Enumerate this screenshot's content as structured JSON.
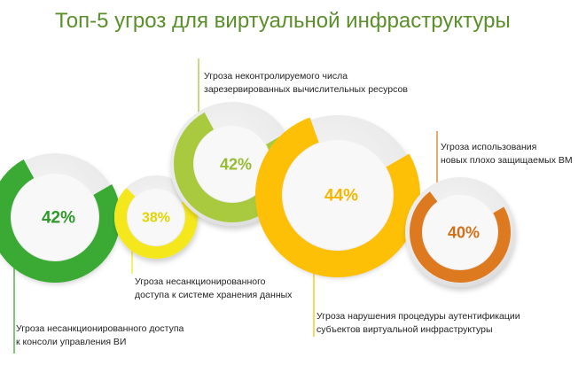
{
  "chart_data": {
    "type": "donut",
    "title": "Топ-5 угроз для виртуальной инфраструктуры",
    "items": [
      {
        "label": "Угроза несанкционированного доступа к консоли управления ВИ",
        "line1": "Угроза несанкционированного доступа",
        "line2": "к консоли управления ВИ",
        "value": 42,
        "value_text": "42%",
        "color": "#3aaa35",
        "text_color": "#2f9a2c"
      },
      {
        "label": "Угроза несанкционированного доступа к системе хранения данных",
        "line1": "Угроза несанкционированного",
        "line2": "доступа к системе хранения данных",
        "value": 38,
        "value_text": "38%",
        "color": "#f4e81d",
        "text_color": "#e3d400"
      },
      {
        "label": "Угроза неконтролируемого числа зарезервированных вычислительных ресурсов",
        "line1": "Угроза неконтролируемого числа",
        "line2": "зарезервированных вычислительных ресурсов",
        "value": 42,
        "value_text": "42%",
        "color": "#a9c93f",
        "text_color": "#97bb33"
      },
      {
        "label": "Угроза нарушения процедуры аутентификации субъектов виртуальной инфраструктуры",
        "line1": "Угроза нарушения процедуры аутентификации",
        "line2": "субъектов виртуальной инфраструктуры",
        "value": 44,
        "value_text": "44%",
        "color": "#fdc007",
        "text_color": "#f7b700"
      },
      {
        "label": "Угроза использования новых плохо защищаемых ВМ",
        "line1": "Угроза использования",
        "line2": "новых плохо защищаемых ВМ",
        "value": 40,
        "value_text": "40%",
        "color": "#dd7a1f",
        "text_color": "#d2701a"
      }
    ]
  }
}
